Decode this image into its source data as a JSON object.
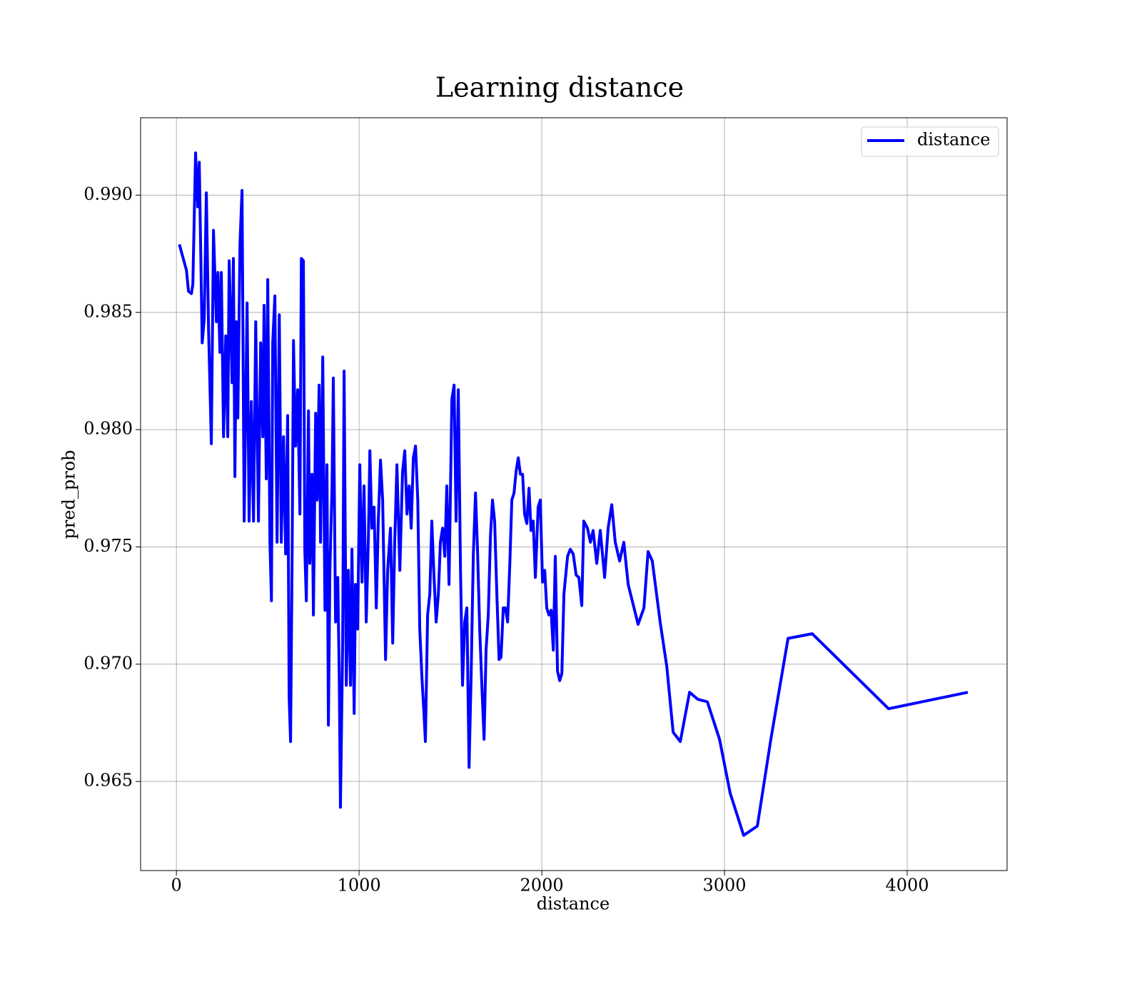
{
  "chart_data": {
    "type": "line",
    "title": "Learning distance",
    "x_label": "distance",
    "y_label": "pred_prob",
    "x": [
      16,
      55,
      66,
      82,
      90,
      105,
      117,
      125,
      141,
      152,
      164,
      176,
      191,
      203,
      219,
      227,
      238,
      246,
      258,
      270,
      281,
      289,
      305,
      312,
      320,
      328,
      336,
      348,
      359,
      371,
      387,
      398,
      410,
      422,
      434,
      449,
      461,
      473,
      480,
      492,
      500,
      512,
      520,
      527,
      539,
      551,
      563,
      574,
      586,
      598,
      609,
      617,
      625,
      633,
      641,
      652,
      664,
      676,
      684,
      695,
      703,
      711,
      723,
      730,
      742,
      750,
      762,
      770,
      781,
      789,
      801,
      813,
      824,
      832,
      840,
      852,
      859,
      871,
      883,
      891,
      898,
      910,
      918,
      930,
      941,
      953,
      961,
      973,
      980,
      992,
      1004,
      1016,
      1027,
      1039,
      1051,
      1059,
      1070,
      1082,
      1094,
      1105,
      1117,
      1129,
      1145,
      1156,
      1172,
      1184,
      1195,
      1207,
      1223,
      1238,
      1250,
      1262,
      1274,
      1285,
      1297,
      1309,
      1321,
      1332,
      1344,
      1355,
      1363,
      1375,
      1387,
      1398,
      1410,
      1422,
      1434,
      1445,
      1457,
      1469,
      1480,
      1492,
      1508,
      1520,
      1531,
      1543,
      1555,
      1566,
      1578,
      1590,
      1602,
      1613,
      1625,
      1637,
      1648,
      1660,
      1672,
      1684,
      1695,
      1707,
      1719,
      1730,
      1742,
      1754,
      1766,
      1777,
      1789,
      1801,
      1813,
      1825,
      1836,
      1848,
      1859,
      1871,
      1883,
      1895,
      1906,
      1918,
      1930,
      1941,
      1953,
      1965,
      1980,
      1992,
      2004,
      2016,
      2027,
      2039,
      2051,
      2063,
      2074,
      2086,
      2098,
      2110,
      2121,
      2141,
      2156,
      2172,
      2188,
      2203,
      2219,
      2230,
      2250,
      2266,
      2281,
      2301,
      2320,
      2344,
      2363,
      2383,
      2402,
      2426,
      2449,
      2473,
      2527,
      2559,
      2582,
      2605,
      2648,
      2684,
      2719,
      2758,
      2809,
      2855,
      2906,
      2973,
      3031,
      3105,
      3180,
      3254,
      3348,
      3480,
      3898,
      4332
    ],
    "series": [
      {
        "name": "distance",
        "color": "#0000ff",
        "values": [
          0.9879,
          0.9868,
          0.9859,
          0.9858,
          0.9862,
          0.9918,
          0.9895,
          0.9914,
          0.9837,
          0.9847,
          0.9901,
          0.9843,
          0.9794,
          0.9885,
          0.9846,
          0.9867,
          0.9833,
          0.9867,
          0.9797,
          0.984,
          0.9797,
          0.9872,
          0.982,
          0.9873,
          0.978,
          0.9846,
          0.9805,
          0.9879,
          0.9902,
          0.9761,
          0.9854,
          0.9761,
          0.9812,
          0.9761,
          0.9846,
          0.9761,
          0.9837,
          0.9797,
          0.9853,
          0.9779,
          0.9864,
          0.9752,
          0.9727,
          0.9837,
          0.9857,
          0.9752,
          0.9849,
          0.9752,
          0.9797,
          0.9747,
          0.9806,
          0.9686,
          0.9667,
          0.9743,
          0.9838,
          0.9793,
          0.9817,
          0.9764,
          0.9873,
          0.9872,
          0.9748,
          0.9727,
          0.9808,
          0.9743,
          0.9781,
          0.9721,
          0.9807,
          0.977,
          0.9819,
          0.9752,
          0.9831,
          0.9723,
          0.9785,
          0.9674,
          0.974,
          0.9776,
          0.9822,
          0.9718,
          0.9737,
          0.9697,
          0.9639,
          0.9709,
          0.9825,
          0.9691,
          0.974,
          0.9691,
          0.9749,
          0.9679,
          0.9734,
          0.9715,
          0.9785,
          0.9735,
          0.9776,
          0.9718,
          0.9755,
          0.9791,
          0.9758,
          0.9767,
          0.9724,
          0.9761,
          0.9787,
          0.977,
          0.9702,
          0.974,
          0.9758,
          0.9709,
          0.9752,
          0.9785,
          0.974,
          0.9782,
          0.9791,
          0.9764,
          0.9776,
          0.9758,
          0.9788,
          0.9793,
          0.977,
          0.9715,
          0.9694,
          0.9679,
          0.9667,
          0.9721,
          0.973,
          0.9761,
          0.9737,
          0.9718,
          0.973,
          0.9752,
          0.9758,
          0.9746,
          0.9776,
          0.9734,
          0.9813,
          0.9819,
          0.9761,
          0.9817,
          0.974,
          0.9691,
          0.9718,
          0.9724,
          0.9656,
          0.9694,
          0.9746,
          0.9773,
          0.9749,
          0.9715,
          0.9691,
          0.9668,
          0.9706,
          0.9721,
          0.9755,
          0.977,
          0.9761,
          0.973,
          0.9702,
          0.9703,
          0.9724,
          0.9724,
          0.9718,
          0.9743,
          0.977,
          0.9773,
          0.9782,
          0.9788,
          0.9781,
          0.9781,
          0.9764,
          0.976,
          0.9775,
          0.9757,
          0.9761,
          0.9737,
          0.9767,
          0.977,
          0.9735,
          0.974,
          0.9724,
          0.9721,
          0.9723,
          0.9706,
          0.9746,
          0.9697,
          0.9693,
          0.9696,
          0.973,
          0.9746,
          0.9749,
          0.9747,
          0.9738,
          0.9737,
          0.9725,
          0.9761,
          0.9758,
          0.9752,
          0.9757,
          0.9743,
          0.9757,
          0.9737,
          0.9758,
          0.9768,
          0.9752,
          0.9744,
          0.9752,
          0.9734,
          0.9717,
          0.9724,
          0.9748,
          0.9744,
          0.9718,
          0.9699,
          0.9671,
          0.9667,
          0.9688,
          0.9685,
          0.9684,
          0.9668,
          0.9645,
          0.9627,
          0.9631,
          0.9668,
          0.9711,
          0.9713,
          0.9681,
          0.9688
        ]
      }
    ],
    "xlim": [
      -196,
      4547
    ],
    "ylim": [
      0.9612,
      0.9933
    ],
    "xticks": [
      0,
      1000,
      2000,
      3000,
      4000
    ],
    "yticks": [
      0.965,
      {
        "value": 0.97,
        "label": "0.970"
      },
      0.975,
      {
        "value": 0.98,
        "label": "0.980"
      },
      0.985,
      {
        "value": 0.99,
        "label": "0.990"
      }
    ],
    "grid": true,
    "legend": "upper right"
  }
}
